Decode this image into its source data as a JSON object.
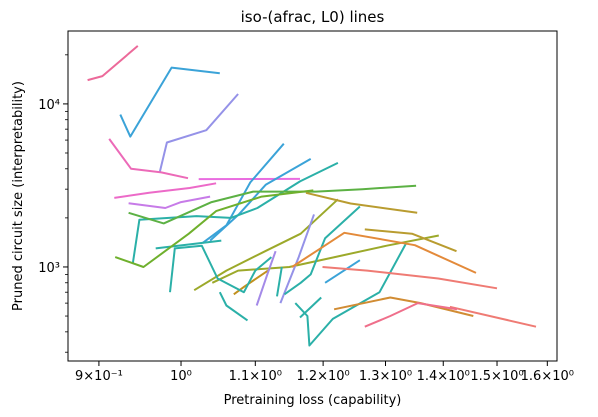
{
  "chart_data": {
    "type": "line",
    "title": "iso-(afrac, L0) lines",
    "xlabel": "Pretraining loss (capability)",
    "ylabel": "Pruned circuit size (interpretability)",
    "xscale": "log",
    "yscale": "log",
    "xlim": [
      0.865,
      1.62
    ],
    "ylim": [
      265,
      28000
    ],
    "grid": false,
    "legend": "none",
    "x_ticks": [
      {
        "value": 0.9,
        "label": "9×10⁻¹"
      },
      {
        "value": 1.0,
        "label": "10⁰"
      },
      {
        "value": 1.1,
        "label": "1.1×10⁰"
      },
      {
        "value": 1.2,
        "label": "1.2×10⁰"
      },
      {
        "value": 1.3,
        "label": "1.3×10⁰"
      },
      {
        "value": 1.4,
        "label": "1.4×10⁰"
      },
      {
        "value": 1.5,
        "label": "1.5×10⁰"
      },
      {
        "value": 1.6,
        "label": "1.6×10⁰"
      }
    ],
    "y_ticks": [
      {
        "value": 1000,
        "label": "10³"
      },
      {
        "value": 10000,
        "label": "10⁴"
      }
    ],
    "series": [
      {
        "color": "#ec6a9a",
        "x": [
          0.887,
          0.904,
          0.946
        ],
        "y": [
          14000,
          14800,
          22700
        ]
      },
      {
        "color": "#3ba3d8",
        "x": [
          0.925,
          0.937,
          0.988,
          1.051
        ],
        "y": [
          8600,
          6300,
          16700,
          15400
        ]
      },
      {
        "color": "#9592e8",
        "x": [
          0.973,
          0.982,
          1.033,
          1.076
        ],
        "y": [
          3800,
          5800,
          6900,
          11500
        ]
      },
      {
        "color": "#ec6ab8",
        "x": [
          0.912,
          0.938,
          0.975,
          1.009
        ],
        "y": [
          6100,
          4000,
          3800,
          3500
        ]
      },
      {
        "color": "#ec6ac8",
        "x": [
          0.918,
          0.96,
          1.011,
          1.046
        ],
        "y": [
          2650,
          2850,
          3050,
          3260
        ]
      },
      {
        "color": "#e96ce0",
        "x": [
          1.023,
          1.165
        ],
        "y": [
          3460,
          3470
        ]
      },
      {
        "color": "#c77be8",
        "x": [
          0.935,
          0.98,
          1.0,
          1.038
        ],
        "y": [
          2460,
          2300,
          2500,
          2700
        ]
      },
      {
        "color": "#3ba3d8",
        "x": [
          1.028,
          1.06,
          1.093,
          1.141
        ],
        "y": [
          1400,
          1800,
          3300,
          5700
        ]
      },
      {
        "color": "#3ba3d8",
        "x": [
          1.038,
          1.077,
          1.115,
          1.181
        ],
        "y": [
          1450,
          2100,
          3200,
          4600
        ]
      },
      {
        "color": "#2bb0a8",
        "x": [
          0.94,
          0.948,
          1.02,
          1.066,
          1.103,
          1.165,
          1.223
        ],
        "y": [
          1050,
          1950,
          2050,
          2000,
          2300,
          3350,
          4350
        ]
      },
      {
        "color": "#2bb0a8",
        "x": [
          0.968,
          1.025,
          1.053
        ],
        "y": [
          1300,
          1400,
          1450
        ]
      },
      {
        "color": "#5cb144",
        "x": [
          0.935,
          0.978,
          1.04,
          1.097,
          1.189,
          1.262,
          1.352
        ],
        "y": [
          2150,
          1850,
          2500,
          2900,
          2900,
          3000,
          3150
        ]
      },
      {
        "color": "#6fb02d",
        "x": [
          0.919,
          0.953,
          1.01,
          1.046,
          1.109,
          1.185
        ],
        "y": [
          1150,
          1000,
          1600,
          2200,
          2700,
          2950
        ]
      },
      {
        "color": "#9ca92a",
        "x": [
          1.017,
          1.06,
          1.114,
          1.166,
          1.223
        ],
        "y": [
          720,
          950,
          1250,
          1600,
          2600
        ]
      },
      {
        "color": "#9ca92a",
        "x": [
          1.041,
          1.076,
          1.149,
          1.218,
          1.302,
          1.392
        ],
        "y": [
          800,
          950,
          1000,
          1150,
          1350,
          1560
        ]
      },
      {
        "color": "#c2911e",
        "x": [
          1.07,
          1.085,
          1.118
        ],
        "y": [
          680,
          760,
          950
        ]
      },
      {
        "color": "#b99c30",
        "x": [
          1.174,
          1.243,
          1.354
        ],
        "y": [
          2850,
          2450,
          2150
        ]
      },
      {
        "color": "#2bb0a8",
        "x": [
          0.986,
          0.992,
          1.027,
          1.048,
          1.084,
          1.1,
          1.123
        ],
        "y": [
          700,
          1300,
          1350,
          850,
          700,
          950,
          1150
        ]
      },
      {
        "color": "#2bb0a8",
        "x": [
          1.051,
          1.06,
          1.089
        ],
        "y": [
          700,
          580,
          470
        ]
      },
      {
        "color": "#a48ae8",
        "x": [
          1.102,
          1.117,
          1.129
        ],
        "y": [
          580,
          900,
          1250
        ]
      },
      {
        "color": "#9592e8",
        "x": [
          1.136,
          1.163,
          1.186
        ],
        "y": [
          600,
          1150,
          2100
        ]
      },
      {
        "color": "#2bb0a8",
        "x": [
          1.142,
          1.166,
          1.181,
          1.203,
          1.258
        ],
        "y": [
          680,
          800,
          900,
          1500,
          2350
        ]
      },
      {
        "color": "#2bb0a8",
        "x": [
          1.131,
          1.138
        ],
        "y": [
          660,
          1000
        ]
      },
      {
        "color": "#3ba3d8",
        "x": [
          1.203,
          1.258
        ],
        "y": [
          800,
          1100
        ]
      },
      {
        "color": "#2bb0a8",
        "x": [
          1.158,
          1.176,
          1.179,
          1.215,
          1.29,
          1.335
        ],
        "y": [
          600,
          500,
          330,
          480,
          700,
          1400
        ]
      },
      {
        "color": "#2bb0a8",
        "x": [
          1.165,
          1.197
        ],
        "y": [
          490,
          650
        ]
      },
      {
        "color": "#e38a3a",
        "x": [
          1.153,
          1.196,
          1.233,
          1.35,
          1.46
        ],
        "y": [
          1000,
          1300,
          1620,
          1360,
          920
        ]
      },
      {
        "color": "#d18c33",
        "x": [
          1.217,
          1.308,
          1.36,
          1.455
        ],
        "y": [
          550,
          650,
          600,
          500
        ]
      },
      {
        "color": "#b99c30",
        "x": [
          1.266,
          1.345,
          1.424
        ],
        "y": [
          1700,
          1600,
          1250
        ]
      },
      {
        "color": "#ef7b74",
        "x": [
          1.199,
          1.27,
          1.391,
          1.5
        ],
        "y": [
          1000,
          950,
          850,
          740
        ]
      },
      {
        "color": "#ef7b74",
        "x": [
          1.412,
          1.577
        ],
        "y": [
          570,
          430
        ]
      },
      {
        "color": "#ef6f8b",
        "x": [
          1.266,
          1.308,
          1.355,
          1.425
        ],
        "y": [
          430,
          500,
          600,
          550
        ]
      }
    ]
  }
}
